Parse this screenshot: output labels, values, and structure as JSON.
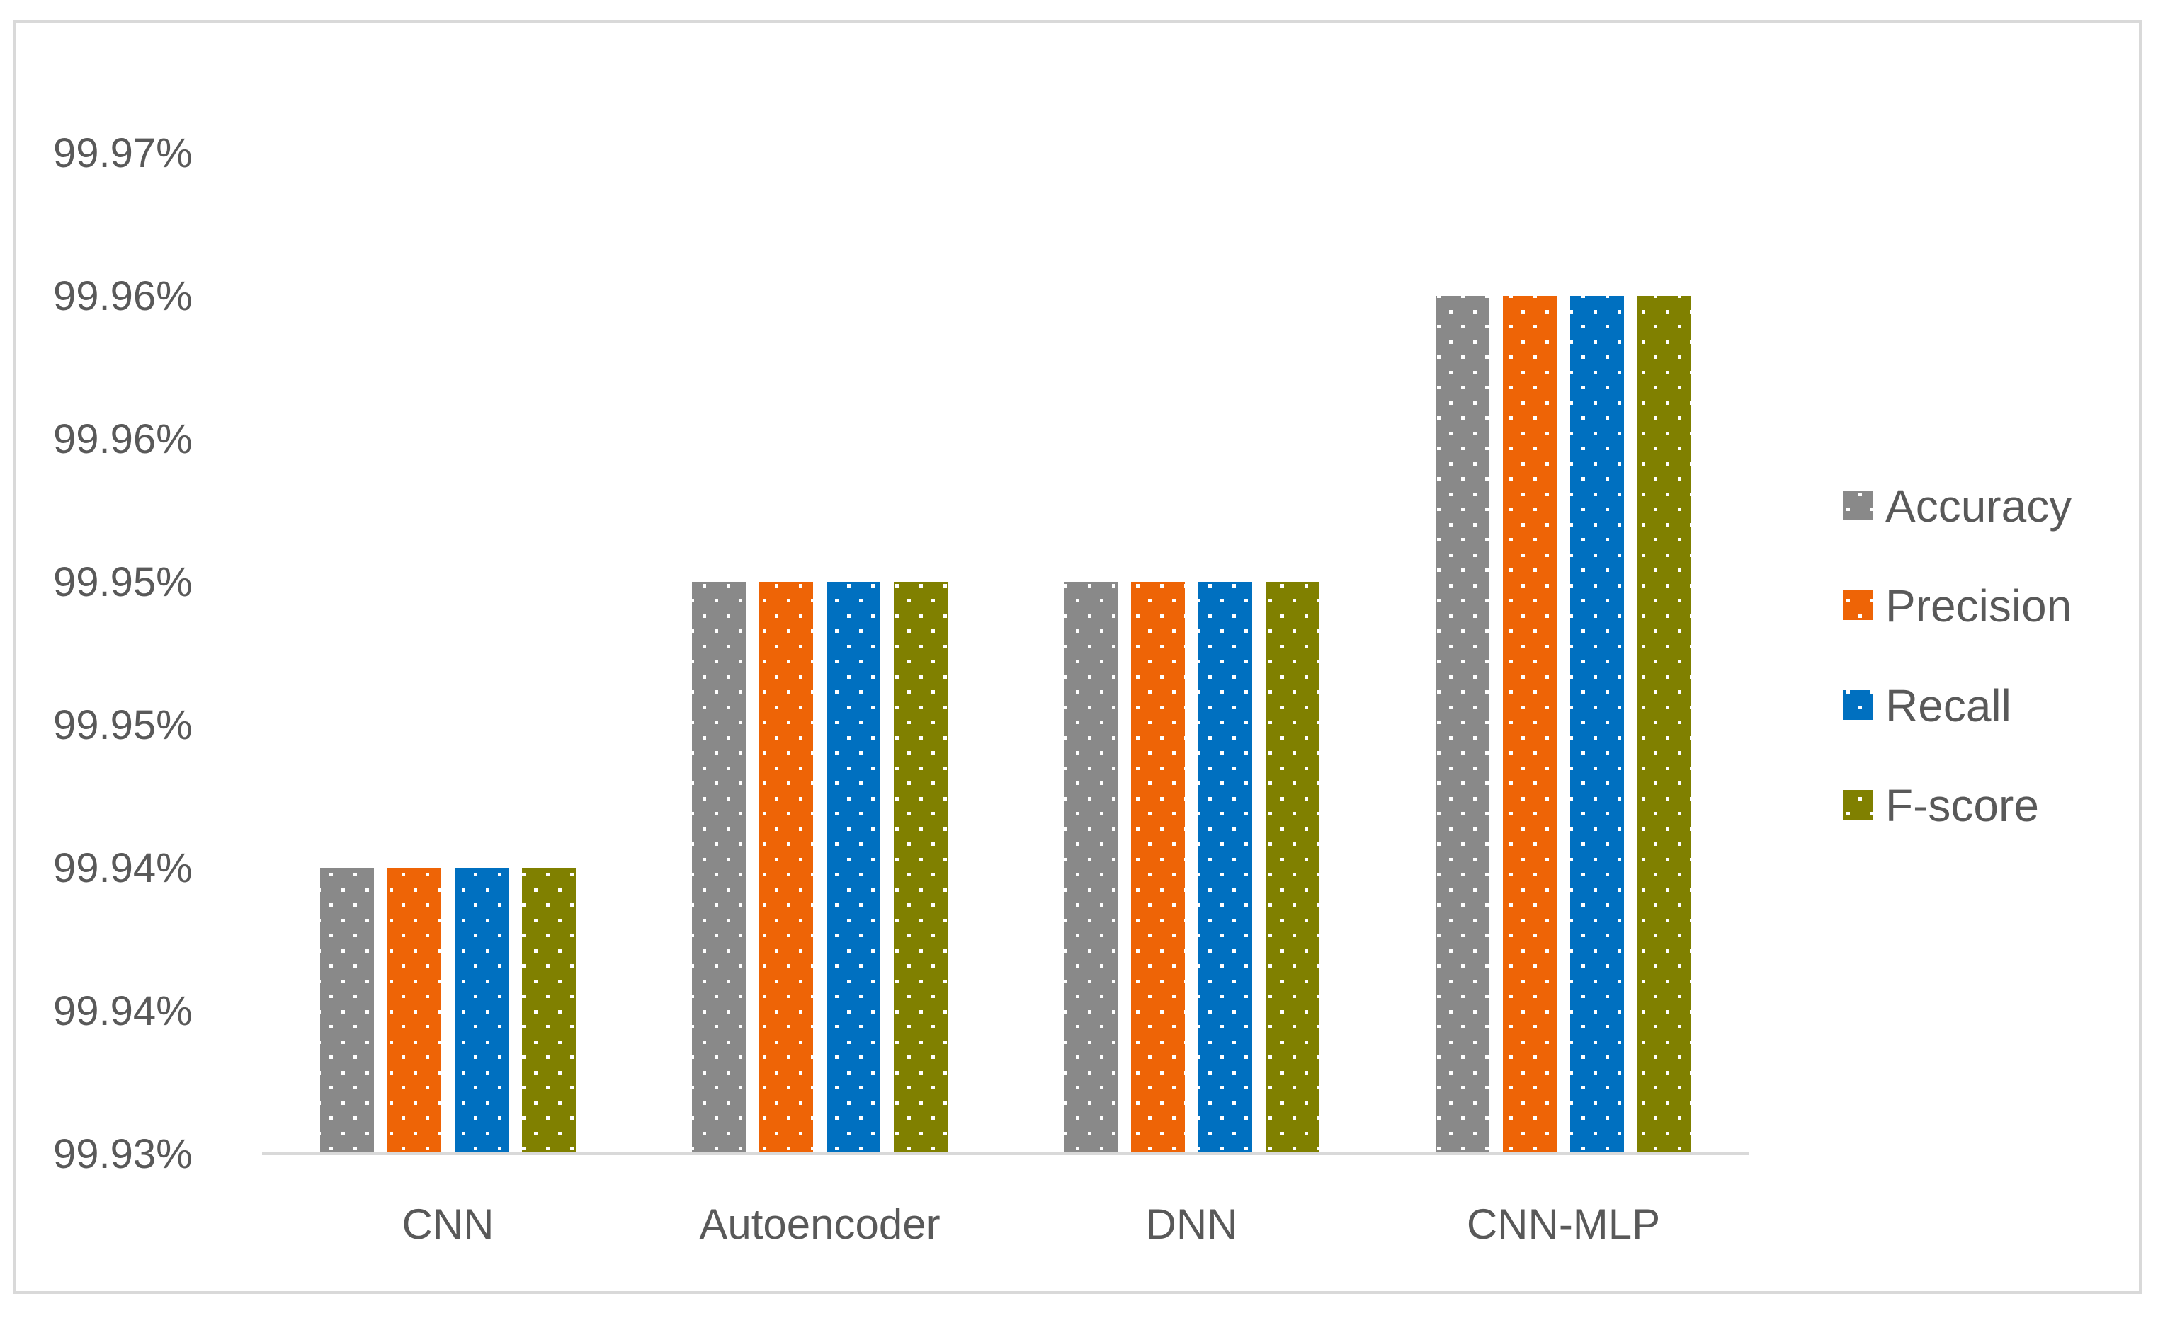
{
  "chart_data": {
    "type": "bar",
    "categories": [
      "CNN",
      "Autoencoder",
      "DNN",
      "CNN-MLP"
    ],
    "series": [
      {
        "name": "Accuracy",
        "values": [
          99.94,
          99.95,
          99.95,
          99.96
        ],
        "color": "#898989"
      },
      {
        "name": "Precision",
        "values": [
          99.94,
          99.95,
          99.95,
          99.96
        ],
        "color": "#ee6406"
      },
      {
        "name": "Recall",
        "values": [
          99.94,
          99.95,
          99.95,
          99.96
        ],
        "color": "#0070c0"
      },
      {
        "name": "F-score",
        "values": [
          99.94,
          99.95,
          99.95,
          99.96
        ],
        "color": "#808000"
      }
    ],
    "ylim": [
      99.93,
      99.9675
    ],
    "yticks": [
      99.93,
      99.935,
      99.94,
      99.945,
      99.95,
      99.955,
      99.96,
      99.965
    ],
    "ytick_labels": [
      "99.93%",
      "99.94%",
      "99.94%",
      "99.95%",
      "99.95%",
      "99.96%",
      "99.96%",
      "99.97%"
    ],
    "xlabel": "",
    "ylabel": "",
    "title": "",
    "grid": false,
    "legend": "right",
    "pattern": "dotted"
  }
}
